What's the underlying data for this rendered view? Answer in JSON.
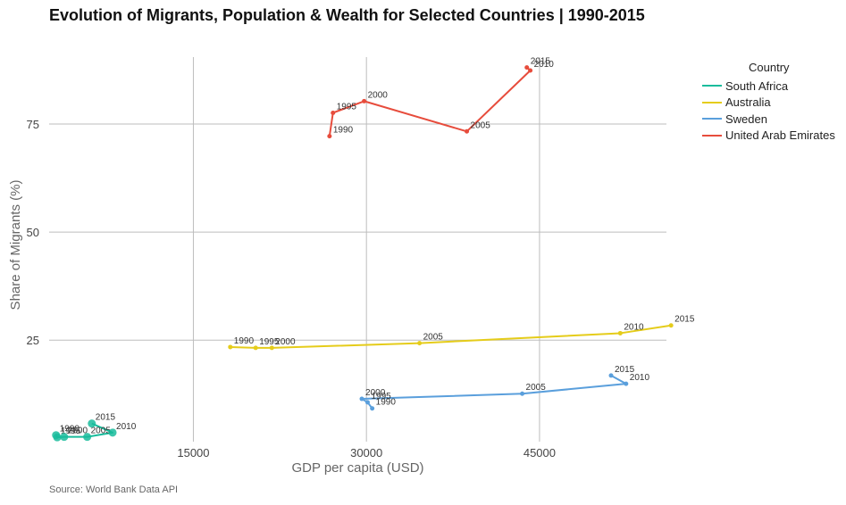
{
  "title": "Evolution of Migrants, Population & Wealth for Selected Countries | 1990-2015",
  "source": "Source: World Bank Data API",
  "chart_data": {
    "type": "line",
    "title": "Evolution of Migrants, Population & Wealth for Selected Countries | 1990-2015",
    "xlabel": "GDP per capita (USD)",
    "ylabel": "Share of Migrants (%)",
    "xlim": [
      2500,
      56000
    ],
    "ylim": [
      1.5,
      90.5
    ],
    "xticks": [
      15000,
      30000,
      45000
    ],
    "xtick_labels": [
      "15000",
      "30000",
      "45000"
    ],
    "yticks": [
      25,
      50,
      75
    ],
    "ytick_labels": [
      "25",
      "50",
      "75"
    ],
    "grid": true,
    "legend": {
      "title": "Country",
      "position": "right"
    },
    "series": [
      {
        "name": "South Africa",
        "color": "#1abc9c",
        "years": [
          "1990",
          "1995",
          "2000",
          "2005",
          "2010",
          "2015"
        ],
        "x": [
          3100,
          3200,
          3800,
          5800,
          8000,
          6200
        ],
        "y": [
          3.0,
          2.5,
          2.6,
          2.6,
          3.6,
          5.7
        ]
      },
      {
        "name": "Australia",
        "color": "#e5cc1a",
        "years": [
          "1990",
          "1995",
          "2000",
          "2005",
          "2010",
          "2015"
        ],
        "x": [
          18200,
          20400,
          21800,
          34600,
          52000,
          56400
        ],
        "y": [
          23.4,
          23.2,
          23.2,
          24.3,
          26.6,
          28.4
        ]
      },
      {
        "name": "Sweden",
        "color": "#5a9fdc",
        "years": [
          "1990",
          "1995",
          "2000",
          "2005",
          "2010",
          "2015"
        ],
        "x": [
          30500,
          30100,
          29600,
          43500,
          52500,
          51200
        ],
        "y": [
          9.2,
          10.6,
          11.4,
          12.6,
          14.9,
          16.8
        ]
      },
      {
        "name": "United Arab Emirates",
        "color": "#e74c3c",
        "years": [
          "1990",
          "1995",
          "2000",
          "2005",
          "2010",
          "2015"
        ],
        "x": [
          26800,
          27100,
          29800,
          38700,
          44200,
          43900
        ],
        "y": [
          72.2,
          77.6,
          80.3,
          73.3,
          87.4,
          88.1
        ]
      }
    ]
  }
}
